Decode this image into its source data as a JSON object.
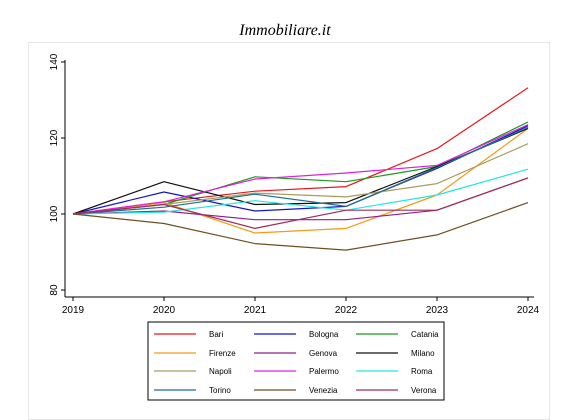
{
  "title": "Immobiliare.it",
  "chart_data": {
    "type": "line",
    "title": "Immobiliare.it",
    "xlabel": "",
    "ylabel": "",
    "x": [
      2019,
      2020,
      2021,
      2022,
      2023,
      2024
    ],
    "ylim": [
      80,
      140
    ],
    "yticks": [
      80,
      100,
      120,
      140
    ],
    "grid": false,
    "legend_position": "bottom",
    "series": [
      {
        "name": "Bari",
        "color": "#e8161b",
        "values": [
          100,
          103.2,
          106.0,
          107.2,
          117.2,
          133.2
        ]
      },
      {
        "name": "Bologna",
        "color": "#1414c8",
        "values": [
          100,
          105.8,
          100.8,
          102.0,
          112.0,
          123.2
        ]
      },
      {
        "name": "Catania",
        "color": "#1a9a1a",
        "values": [
          100,
          102.5,
          109.8,
          108.5,
          112.5,
          124.2
        ]
      },
      {
        "name": "Firenze",
        "color": "#f59b17",
        "values": [
          100,
          103.0,
          95.0,
          96.2,
          105.0,
          122.5
        ]
      },
      {
        "name": "Genova",
        "color": "#8e1e8e",
        "values": [
          100,
          100.8,
          98.5,
          98.5,
          101.0,
          109.5
        ]
      },
      {
        "name": "Milano",
        "color": "#111111",
        "values": [
          100,
          108.5,
          102.5,
          103.0,
          112.5,
          122.5
        ]
      },
      {
        "name": "Napoli",
        "color": "#a89c60",
        "values": [
          100,
          102.5,
          105.5,
          104.5,
          108.0,
          118.5
        ]
      },
      {
        "name": "Palermo",
        "color": "#e020e0",
        "values": [
          100,
          103.2,
          109.2,
          110.8,
          112.8,
          123.5
        ]
      },
      {
        "name": "Roma",
        "color": "#22e6e6",
        "values": [
          100,
          100.5,
          103.5,
          101.0,
          105.0,
          111.8
        ]
      },
      {
        "name": "Torino",
        "color": "#1f6e8e",
        "values": [
          100,
          101.8,
          105.2,
          102.0,
          112.2,
          122.8
        ]
      },
      {
        "name": "Venezia",
        "color": "#6e5020",
        "values": [
          100,
          97.5,
          92.2,
          90.5,
          94.5,
          103.0
        ]
      },
      {
        "name": "Verona",
        "color": "#a02e58",
        "values": [
          100,
          102.5,
          96.2,
          101.0,
          101.0,
          109.5
        ]
      }
    ]
  }
}
